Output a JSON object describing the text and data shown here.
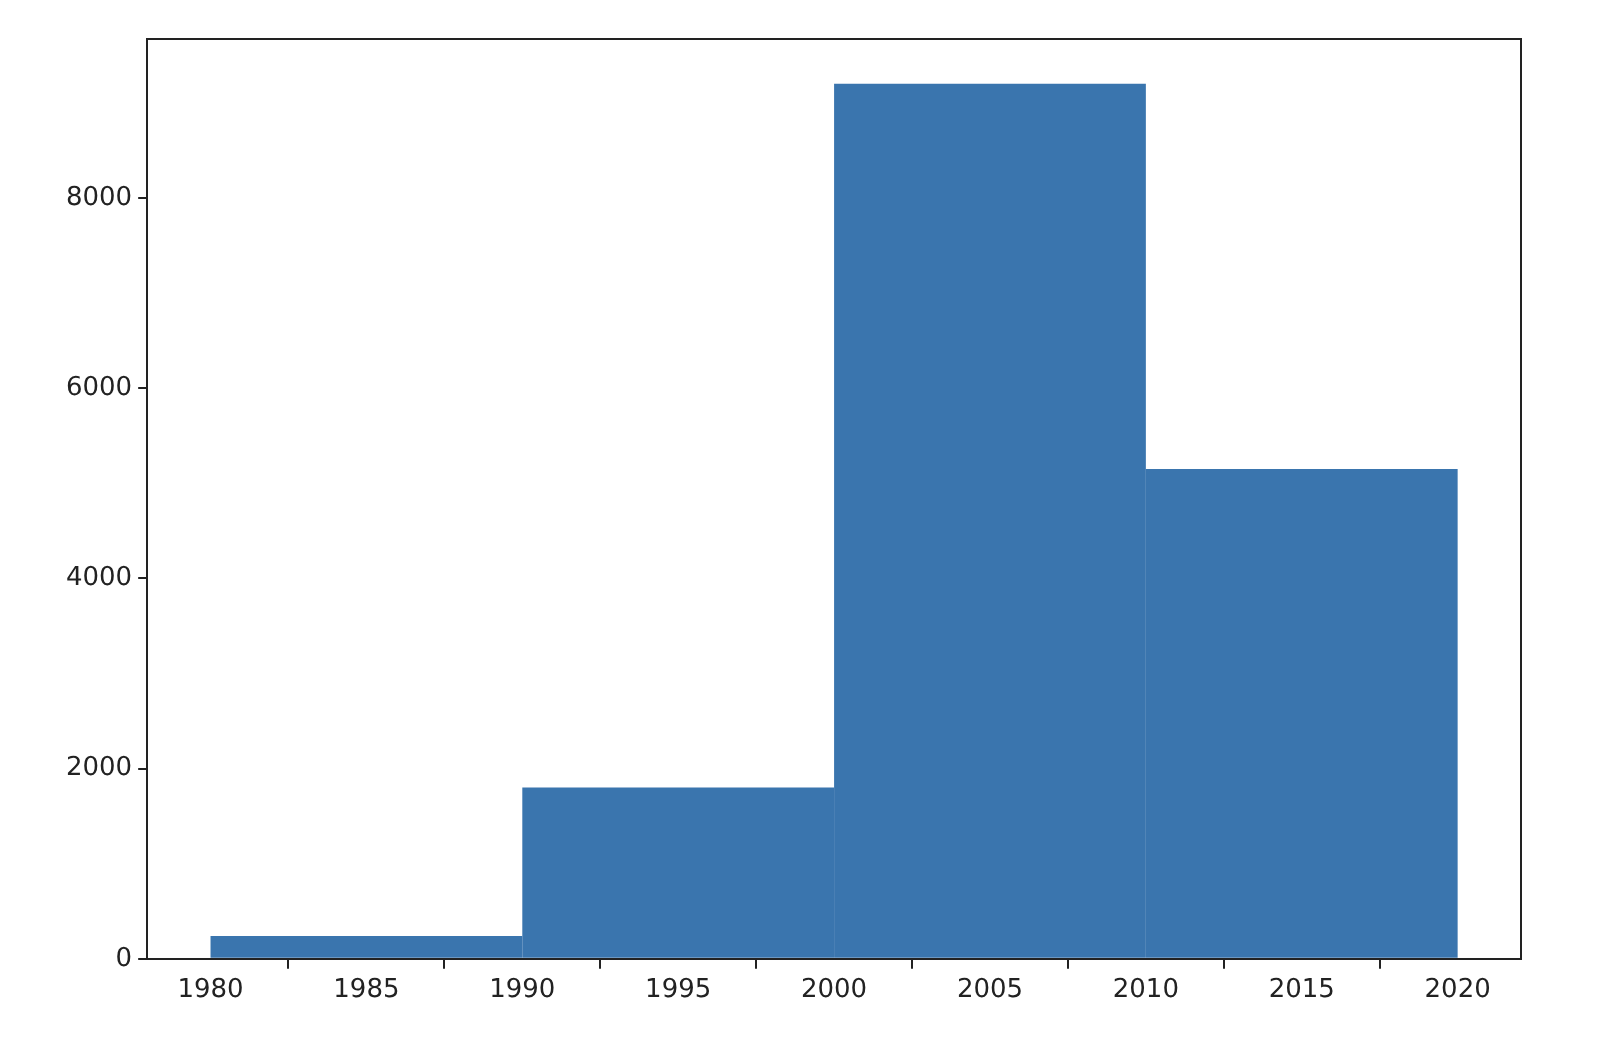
{
  "chart_data": {
    "type": "histogram",
    "bins": [
      1980,
      1990,
      2000,
      2010,
      2020
    ],
    "values": [
      240,
      1800,
      9200,
      5150
    ],
    "color": "#3a75ae",
    "xlim": [
      1978,
      2022
    ],
    "xticks": [
      1980,
      1985,
      1990,
      1995,
      2000,
      2005,
      2010,
      2015,
      2020
    ],
    "ylim": [
      0,
      9660
    ],
    "yticks": [
      0,
      2000,
      4000,
      6000,
      8000
    ]
  }
}
